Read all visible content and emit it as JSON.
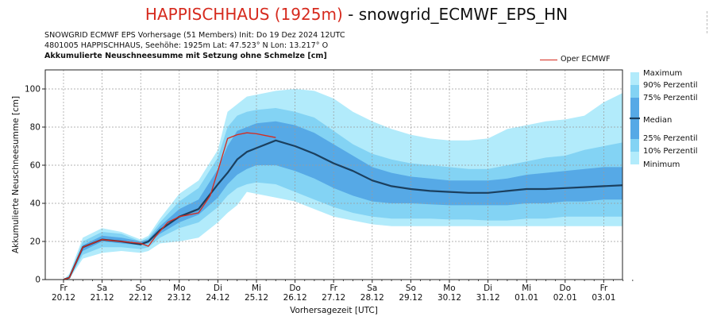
{
  "header": {
    "station": "HAPPISCHHAUS (1925m)",
    "separator": " - ",
    "model": "snowgrid_ECMWF_EPS_HN",
    "line1": "SNOWGRID ECMWF EPS Vorhersage (51 Members) Init: Do 19 Dez 2024 12UTC",
    "line2": "4801005  HAPPISCHHAUS, Seehöhe: 1925m Lat: 47.523° N Lon: 13.217° O",
    "line3": "Akkumulierte Neuschneesumme mit Setzung ohne Schmelze [cm]"
  },
  "colors": {
    "min_max": "#b2ebfb",
    "p10_p90": "#83d3f4",
    "p25_p75": "#56a9e6",
    "core": "#4a98dc",
    "median": "#1b3f5e",
    "oper": "#d62a1e",
    "grid": "#9a9a9a"
  },
  "chart_data": {
    "type": "area",
    "xlabel": "Vorhersagezeit [UTC]",
    "ylabel": "Akkumulierte Neuschneesumme [cm]",
    "ylim": [
      0,
      110
    ],
    "yticks": [
      0,
      20,
      40,
      60,
      80,
      100
    ],
    "xlim_days": [
      0,
      14.9
    ],
    "grid": true,
    "legend_position": "right",
    "xticks": [
      {
        "day": "Fr",
        "date": "20.12"
      },
      {
        "day": "Sa",
        "date": "21.12"
      },
      {
        "day": "So",
        "date": "22.12"
      },
      {
        "day": "Mo",
        "date": "23.12"
      },
      {
        "day": "Di",
        "date": "24.12"
      },
      {
        "day": "Mi",
        "date": "25.12"
      },
      {
        "day": "Do",
        "date": "26.12"
      },
      {
        "day": "Fr",
        "date": "27.12"
      },
      {
        "day": "Sa",
        "date": "28.12"
      },
      {
        "day": "So",
        "date": "29.12"
      },
      {
        "day": "Mo",
        "date": "30.12"
      },
      {
        "day": "Di",
        "date": "31.12"
      },
      {
        "day": "Mi",
        "date": "01.01"
      },
      {
        "day": "Do",
        "date": "02.01"
      },
      {
        "day": "Fr",
        "date": "03.01"
      }
    ],
    "legend": {
      "max": "Maximum",
      "p90": "90% Perzentil",
      "p75": "75% Perzentil",
      "median": "Median",
      "p25": "25% Perzentil",
      "p10": "10% Perzentil",
      "min": "Minimum",
      "oper": "Oper ECMWF"
    },
    "x": [
      0,
      0.15,
      0.5,
      1,
      1.5,
      2,
      2.2,
      2.5,
      3,
      3.5,
      4,
      4.25,
      4.5,
      4.75,
      5,
      5.5,
      6,
      6.5,
      7,
      7.5,
      8,
      8.5,
      9,
      9.5,
      10,
      10.5,
      11,
      11.5,
      12,
      12.5,
      13,
      13.5,
      14,
      14.5,
      14.9
    ],
    "max": [
      0,
      3,
      22,
      27,
      25,
      21,
      23,
      32,
      45,
      52,
      68,
      88,
      92,
      96,
      97,
      99,
      100,
      99,
      95,
      88,
      83,
      79,
      76,
      74,
      73,
      73,
      74,
      79,
      81,
      83,
      84,
      86,
      93,
      98,
      97
    ],
    "p90": [
      0,
      2,
      20,
      25,
      24,
      20,
      22,
      30,
      41,
      48,
      64,
      80,
      86,
      88,
      89,
      90,
      88,
      85,
      78,
      71,
      66,
      63,
      61,
      60,
      59,
      58,
      58,
      60,
      62,
      64,
      65,
      68,
      70,
      72,
      72
    ],
    "p75": [
      0,
      1.5,
      18,
      23,
      22,
      20,
      21,
      28,
      37,
      42,
      58,
      70,
      78,
      80,
      82,
      83,
      81,
      77,
      71,
      65,
      59,
      56,
      54,
      53,
      52,
      52,
      52,
      53,
      55,
      56,
      57,
      58,
      59,
      59,
      59
    ],
    "median": [
      0,
      1,
      17,
      21,
      20,
      18.5,
      20,
      26,
      33,
      37,
      50,
      56,
      63,
      67,
      69,
      73,
      70,
      66,
      61,
      57,
      52,
      49,
      47.5,
      46.5,
      46,
      45.5,
      45.5,
      46.5,
      47.5,
      47.5,
      48,
      48.5,
      49,
      49.5,
      49
    ],
    "p25": [
      0,
      0.8,
      15,
      20,
      19,
      18,
      19,
      24,
      30,
      34,
      43,
      50,
      55,
      58,
      60,
      60,
      57,
      53,
      48,
      44,
      41,
      40,
      40,
      39.5,
      39,
      39,
      39,
      39,
      40,
      40,
      41,
      41,
      42,
      42,
      42
    ],
    "p10": [
      0,
      0.5,
      13,
      17,
      17,
      16,
      17,
      22,
      27,
      30,
      38,
      44,
      48,
      50,
      51,
      50,
      46,
      42,
      38,
      35,
      33,
      32,
      32,
      32,
      31.5,
      31.5,
      31,
      31,
      32,
      32,
      33,
      33,
      33,
      33,
      33
    ],
    "min": [
      0,
      0.3,
      11,
      14,
      15,
      14,
      15,
      19,
      20,
      22,
      30,
      35,
      39,
      46,
      45,
      43,
      41,
      37,
      33,
      31,
      29,
      28,
      28,
      28,
      28,
      28,
      28,
      28,
      28,
      28,
      28,
      28,
      28,
      28,
      28
    ],
    "oper": {
      "x": [
        0,
        0.15,
        0.5,
        1,
        1.5,
        2,
        2.2,
        2.4,
        2.7,
        3,
        3.5,
        3.8,
        4,
        4.25,
        4.5,
        4.75,
        5,
        5.25,
        5.5
      ],
      "y": [
        0,
        1,
        17,
        21,
        20,
        19,
        17.5,
        23,
        30,
        33,
        35,
        44,
        57,
        74,
        76,
        77,
        76.5,
        75.5,
        74.5
      ]
    }
  }
}
